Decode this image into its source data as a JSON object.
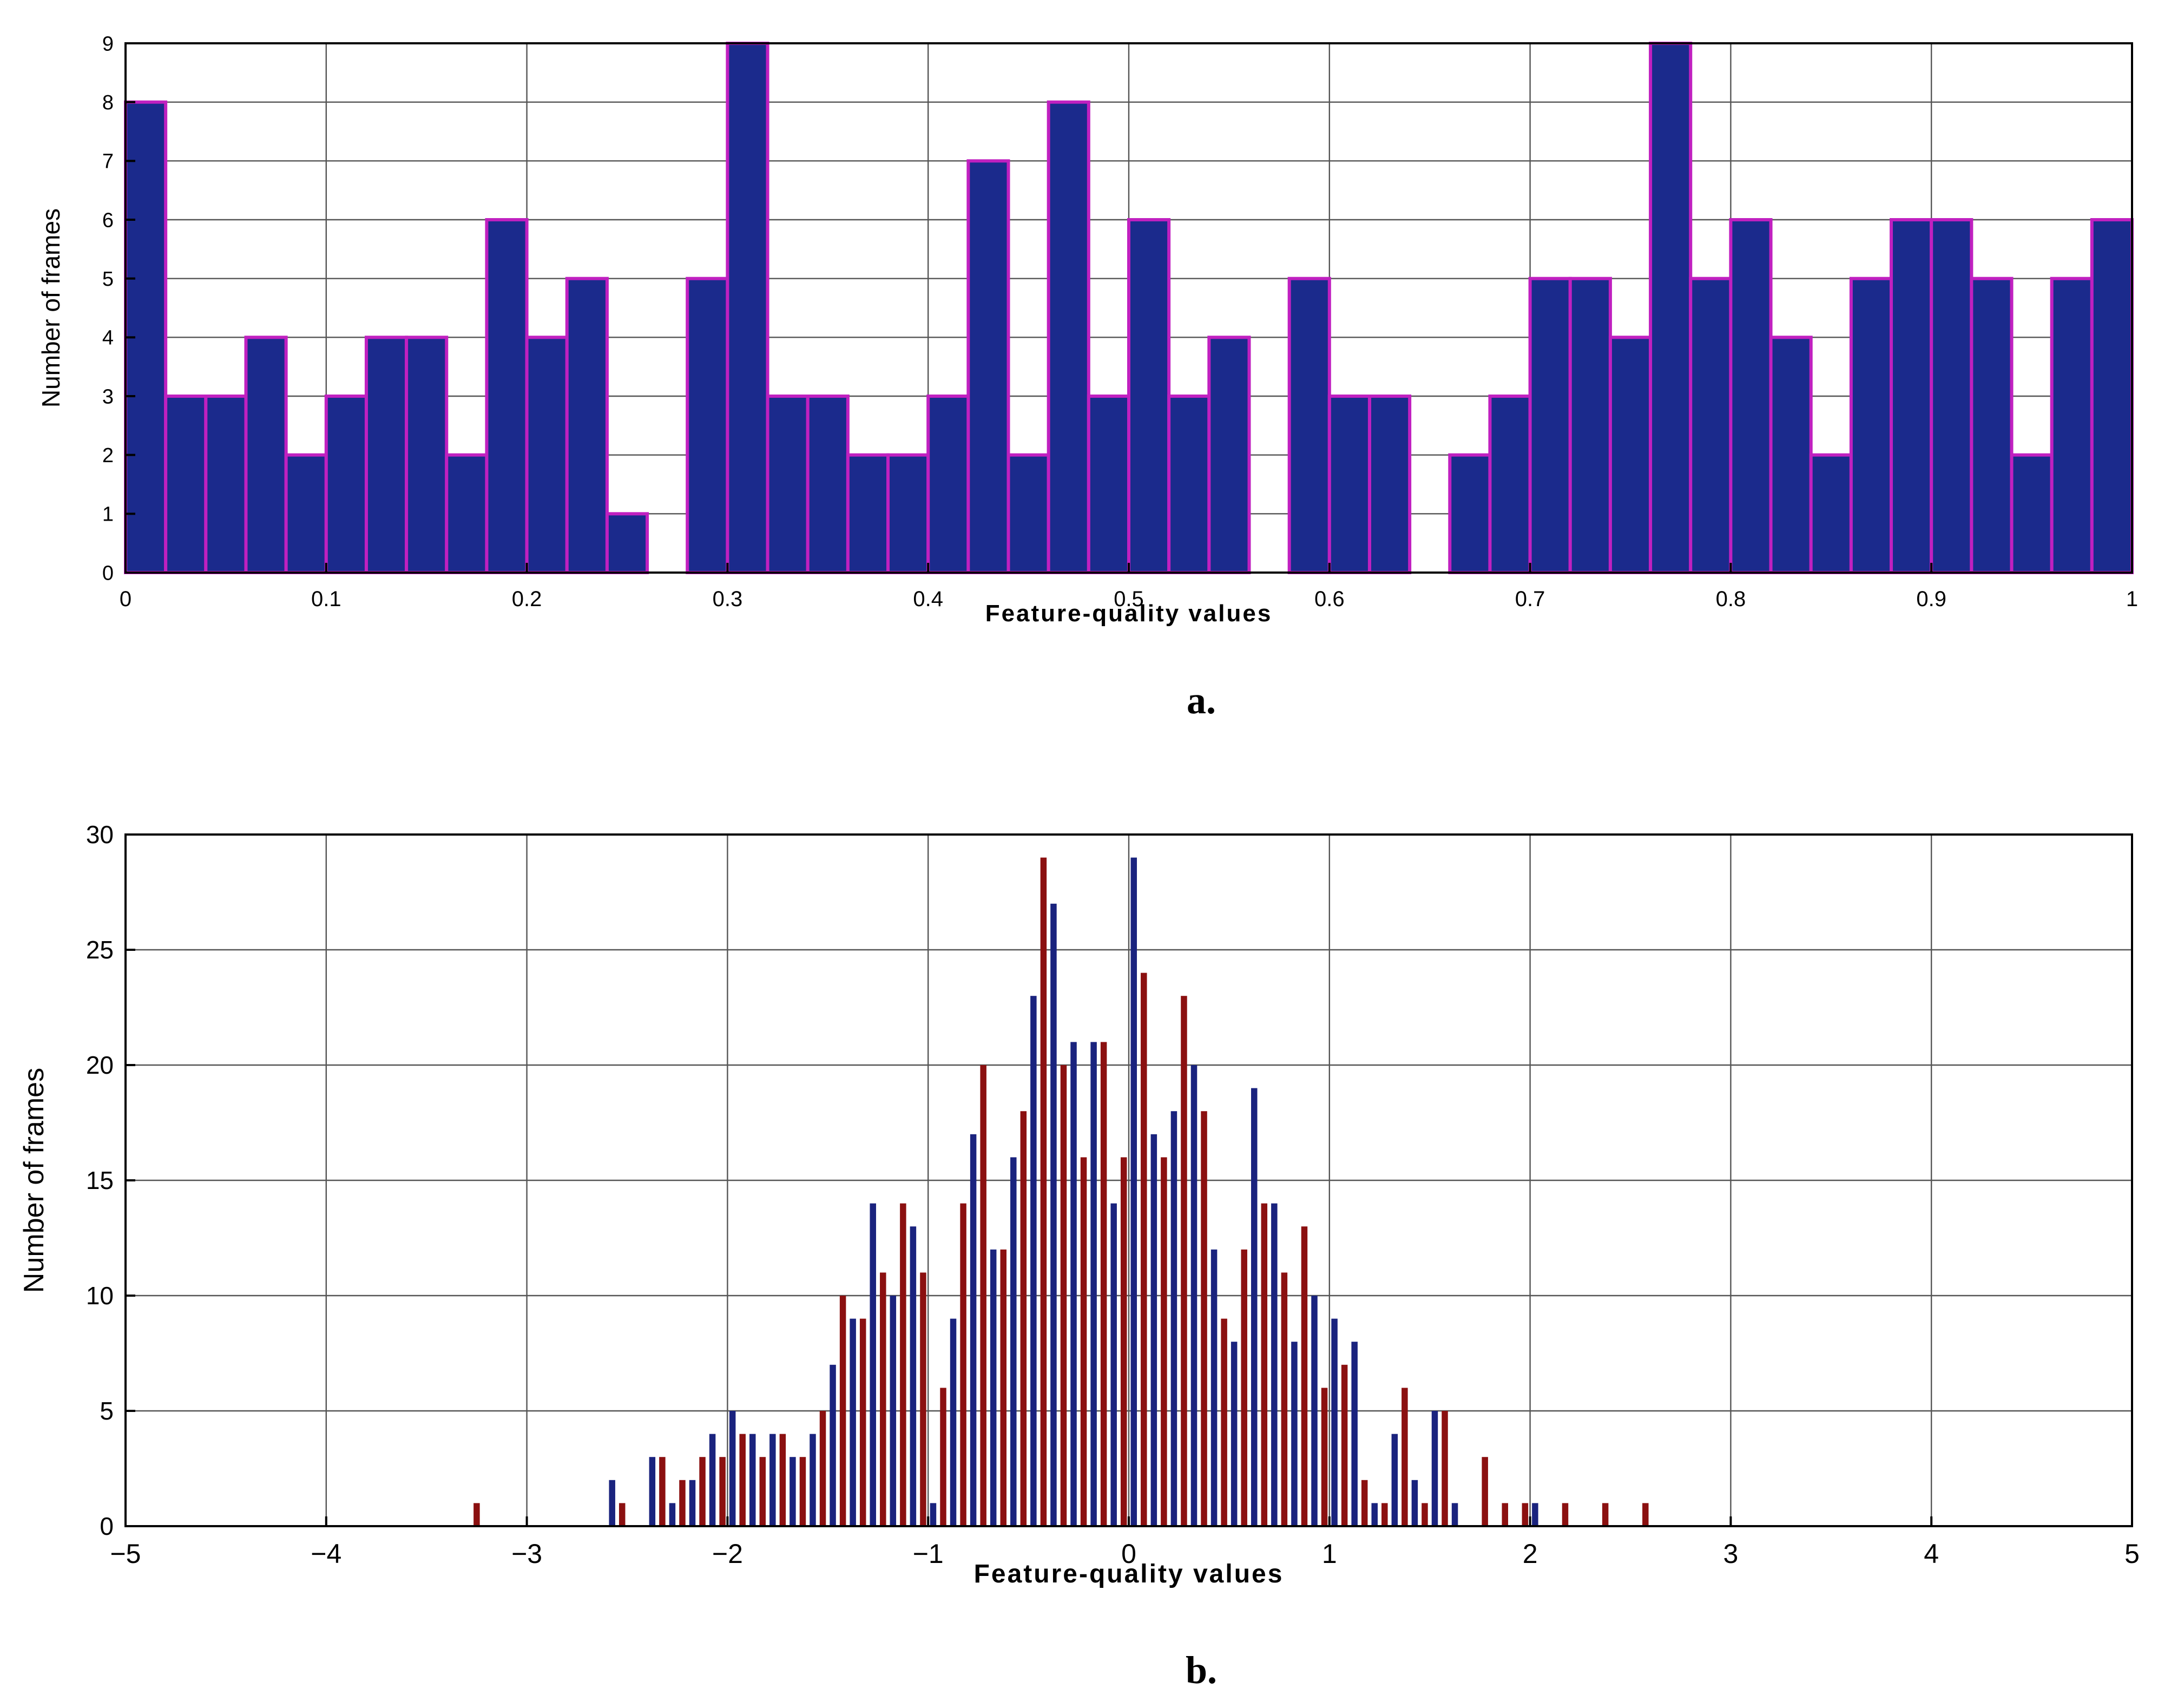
{
  "chart_data": [
    {
      "panel": "a",
      "caption": "a.",
      "type": "bar",
      "title": "",
      "xlabel": "Feature-quality values",
      "ylabel": "Number of frames",
      "xlim": [
        0,
        1
      ],
      "ylim": [
        0,
        9
      ],
      "grid": true,
      "x_ticks": [
        0,
        0.1,
        0.2,
        0.3,
        0.4,
        0.5,
        0.6,
        0.7,
        0.8,
        0.9,
        1
      ],
      "x_tick_labels": [
        "0",
        "0.1",
        "0.2",
        "0.3",
        "0.4",
        "0.5",
        "0.6",
        "0.7",
        "0.8",
        "0.9",
        "1"
      ],
      "y_ticks": [
        0,
        1,
        2,
        3,
        4,
        5,
        6,
        7,
        8,
        9
      ],
      "y_tick_labels": [
        "0",
        "1",
        "2",
        "3",
        "4",
        "5",
        "6",
        "7",
        "8",
        "9"
      ],
      "bin_edges_start": 0,
      "bin_width": 0.02,
      "values": [
        8,
        3,
        3,
        4,
        2,
        3,
        4,
        4,
        2,
        6,
        4,
        5,
        1,
        0,
        5,
        9,
        3,
        3,
        2,
        2,
        3,
        7,
        2,
        8,
        3,
        6,
        3,
        4,
        0,
        5,
        3,
        3,
        0,
        2,
        3,
        5,
        5,
        4,
        9,
        5,
        6,
        4,
        2,
        5,
        6,
        6,
        5,
        2,
        5,
        6
      ],
      "bar_color": "#1b2a8c",
      "edge_color": "#c020c0"
    },
    {
      "panel": "b",
      "caption": "b.",
      "type": "bar",
      "title": "",
      "xlabel": "Feature-quality values",
      "ylabel": "Number of frames",
      "xlim": [
        -5,
        5
      ],
      "ylim": [
        0,
        30
      ],
      "grid": true,
      "x_ticks": [
        -5,
        -4,
        -3,
        -2,
        -1,
        0,
        1,
        2,
        3,
        4,
        5
      ],
      "x_tick_labels": [
        "−5",
        "−4",
        "−3",
        "−2",
        "−1",
        "0",
        "1",
        "2",
        "3",
        "4",
        "5"
      ],
      "y_ticks": [
        0,
        5,
        10,
        15,
        20,
        25,
        30
      ],
      "y_tick_labels": [
        "0",
        "5",
        "10",
        "15",
        "20",
        "25",
        "30"
      ],
      "bin_edges_start": -2.6,
      "bin_width": 0.1,
      "series": [
        {
          "color": "#1a237e",
          "values": [
            2,
            0,
            3,
            1,
            2,
            4,
            5,
            4,
            4,
            3,
            4,
            7,
            9,
            14,
            10,
            13,
            1,
            9,
            17,
            12,
            16,
            23,
            27,
            21,
            21,
            14,
            29,
            17,
            18,
            20,
            12,
            8,
            19,
            14,
            8,
            10,
            9,
            8,
            1,
            4,
            2,
            5,
            1,
            0,
            0,
            0,
            1,
            0,
            0,
            0,
            0,
            0,
            0,
            0,
            0,
            0,
            0,
            0,
            0
          ]
        },
        {
          "color": "#8b1010",
          "values": [
            1,
            0,
            3,
            2,
            3,
            3,
            4,
            3,
            4,
            3,
            5,
            10,
            9,
            11,
            14,
            11,
            6,
            14,
            20,
            12,
            18,
            29,
            20,
            16,
            21,
            16,
            24,
            16,
            23,
            18,
            9,
            12,
            14,
            11,
            13,
            6,
            7,
            2,
            1,
            6,
            1,
            5,
            0,
            3,
            1,
            1,
            0,
            1,
            0,
            1,
            0,
            1,
            0,
            0,
            0,
            0,
            0,
            0,
            0
          ]
        }
      ],
      "extra_bars": [
        {
          "x": -3.25,
          "color": "#8b1010",
          "value": 1
        }
      ]
    }
  ]
}
